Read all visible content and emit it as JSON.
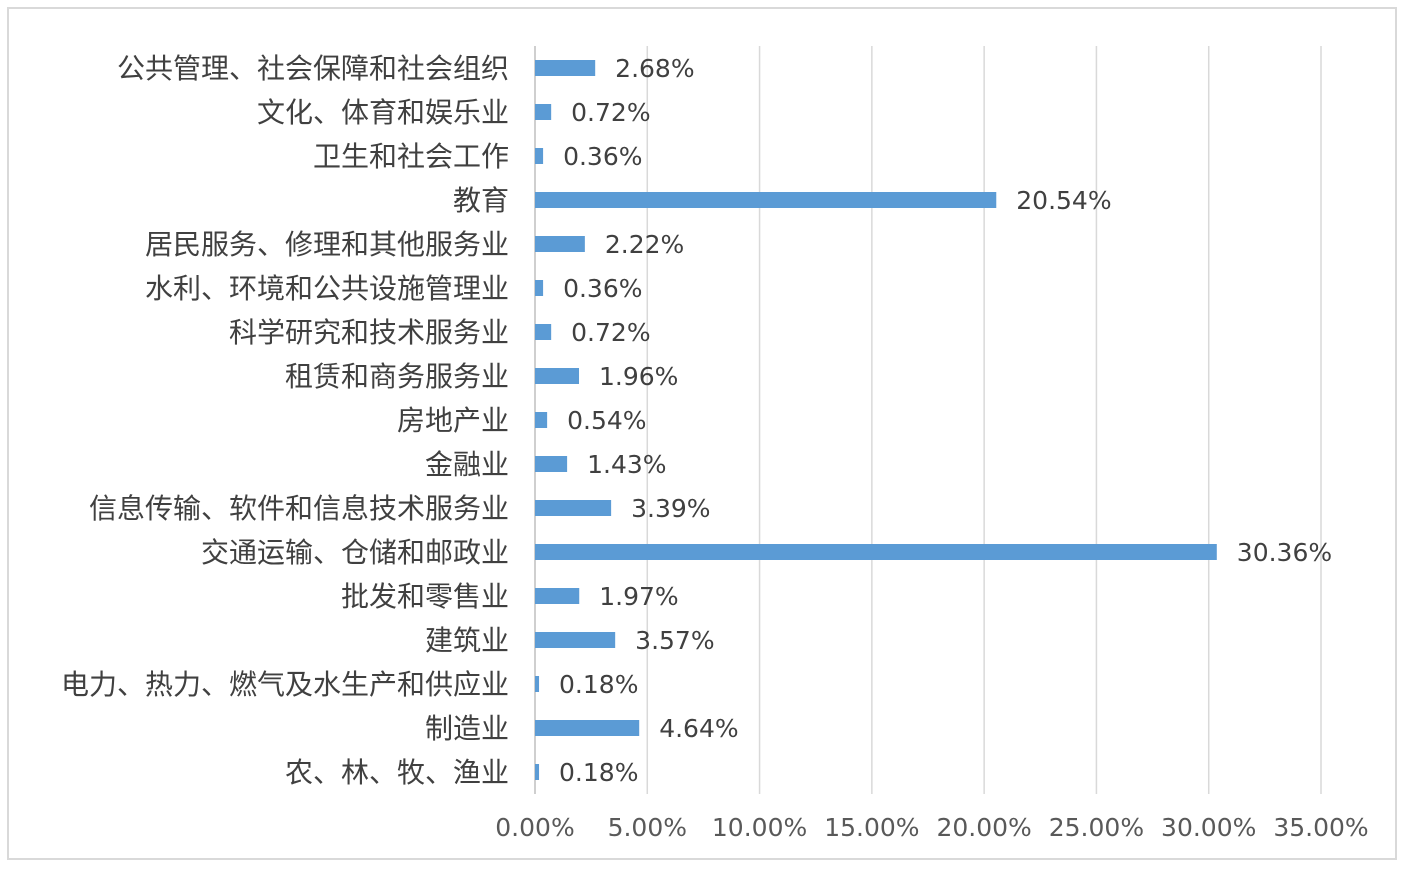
{
  "chart_data": {
    "type": "bar",
    "orientation": "horizontal",
    "categories": [
      "公共管理、社会保障和社会组织",
      "文化、体育和娱乐业",
      "卫生和社会工作",
      "教育",
      "居民服务、修理和其他服务业",
      "水利、环境和公共设施管理业",
      "科学研究和技术服务业",
      "租赁和商务服务业",
      "房地产业",
      "金融业",
      "信息传输、软件和信息技术服务业",
      "交通运输、仓储和邮政业",
      "批发和零售业",
      "建筑业",
      "电力、热力、燃气及水生产和供应业",
      "制造业",
      "农、林、牧、渔业"
    ],
    "values": [
      2.68,
      0.72,
      0.36,
      20.54,
      2.22,
      0.36,
      0.72,
      1.96,
      0.54,
      1.43,
      3.39,
      30.36,
      1.97,
      3.57,
      0.18,
      4.64,
      0.18
    ],
    "value_labels": [
      "2.68%",
      "0.72%",
      "0.36%",
      "20.54%",
      "2.22%",
      "0.36%",
      "0.72%",
      "1.96%",
      "0.54%",
      "1.43%",
      "3.39%",
      "30.36%",
      "1.97%",
      "3.57%",
      "0.18%",
      "4.64%",
      "0.18%"
    ],
    "xlim": [
      0,
      35
    ],
    "xticks": [
      "0.00%",
      "5.00%",
      "10.00%",
      "15.00%",
      "20.00%",
      "25.00%",
      "30.00%",
      "35.00%"
    ],
    "grid": true,
    "legend": "none",
    "colors": {
      "bar": "#5b9bd5",
      "grid": "#d9d9d9",
      "text": "#404040"
    }
  }
}
